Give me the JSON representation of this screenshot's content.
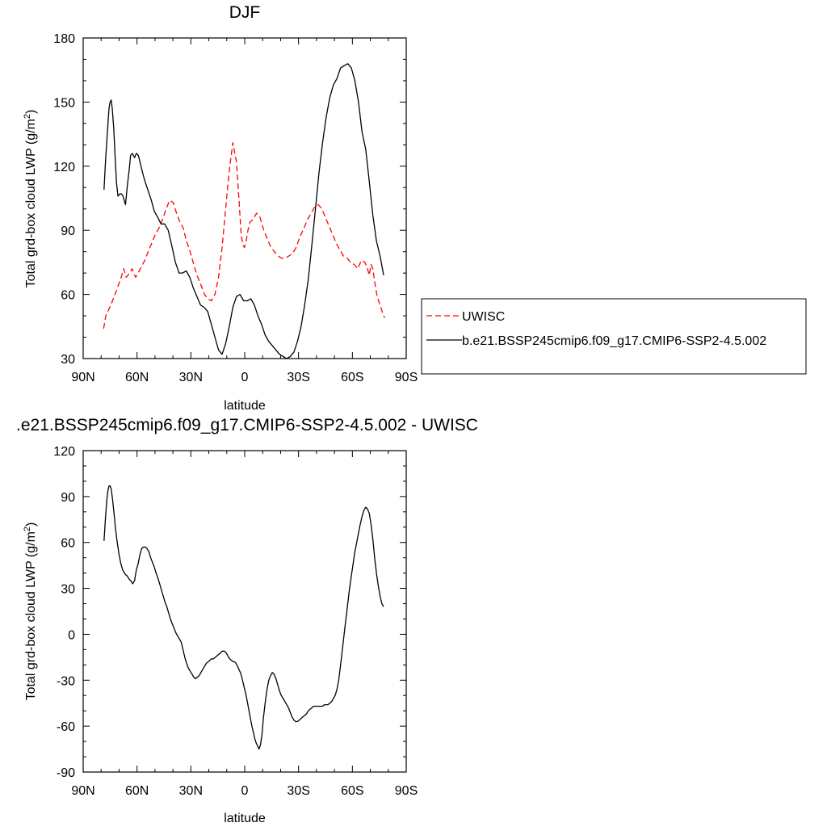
{
  "colors": {
    "model": "#000000",
    "obs": "#ff0000",
    "frame": "#000000"
  },
  "chart_data": [
    {
      "type": "line",
      "title": "DJF",
      "xlabel": "latitude",
      "ylabel_main": "Total grd-box cloud LWP (g/m",
      "ylabel_sup": "2",
      "ylabel_tail": ")",
      "xlim": [
        90,
        -90
      ],
      "ylim": [
        30,
        180
      ],
      "x_ticks": [
        90,
        60,
        30,
        0,
        -30,
        -60,
        -90
      ],
      "x_tick_labels": [
        "90N",
        "60N",
        "30N",
        "0",
        "30S",
        "60S",
        "90S"
      ],
      "y_ticks": [
        30,
        60,
        90,
        120,
        150,
        180
      ],
      "y_tick_labels": [
        "30",
        "60",
        "90",
        "120",
        "150",
        "180"
      ],
      "legend_position": "right",
      "series": [
        {
          "name": "UWISC",
          "style": "dashed",
          "color": "#ff0000",
          "x": [
            78.6,
            77.4,
            76.3,
            74.6,
            73.2,
            71.4,
            69.2,
            67.4,
            66.0,
            64.1,
            62.8,
            60.8,
            59.4,
            57.6,
            55.6,
            53.8,
            51.8,
            49.8,
            47.8,
            45.8,
            43.8,
            41.8,
            39.8,
            38.0,
            36.2,
            34.2,
            32.8,
            30.4,
            28.4,
            26.6,
            24.6,
            22.4,
            20.6,
            18.6,
            16.6,
            14.6,
            12.6,
            10.6,
            8.6,
            6.6,
            4.6,
            3.0,
            2.0,
            1.0,
            0.2,
            -0.8,
            -1.8,
            -3.0,
            -4.6,
            -6.6,
            -8.6,
            -10.6,
            -12.6,
            -14.6,
            -16.6,
            -18.6,
            -20.6,
            -22.6,
            -24.6,
            -26.6,
            -28.6,
            -30.8,
            -33.0,
            -35.0,
            -37.0,
            -39.0,
            -41.0,
            -43.0,
            -45.0,
            -47.0,
            -49.0,
            -51.0,
            -53.0,
            -55.0,
            -57.0,
            -59.0,
            -61.0,
            -63.0,
            -65.0,
            -67.0,
            -68.4,
            -69.4,
            -70.4,
            -71.4,
            -72.6,
            -73.8,
            -75.0,
            -76.6,
            -78.0
          ],
          "values": [
            44,
            50,
            52,
            55,
            58,
            62,
            67,
            72,
            68,
            70,
            72,
            68,
            70,
            73,
            76,
            80,
            84,
            88,
            91,
            95,
            100,
            104,
            103,
            98,
            94,
            91,
            86,
            80,
            74,
            69,
            65,
            60,
            58,
            57,
            60,
            68,
            82,
            100,
            118,
            131,
            122,
            102,
            88,
            83,
            82,
            85,
            90,
            94,
            95,
            98,
            96,
            90,
            86,
            82,
            80,
            78,
            77,
            77,
            78,
            79,
            82,
            87,
            91,
            95,
            98,
            101,
            102,
            100,
            96,
            92,
            88,
            84,
            81,
            78,
            77,
            75,
            74,
            72,
            76,
            75,
            72,
            69,
            74,
            72,
            65,
            59,
            56,
            52,
            49
          ]
        },
        {
          "name": "b.e21.BSSP245cmip6.f09_g17.CMIP6-SSP2-4.5.002",
          "style": "solid",
          "color": "#000000",
          "x": [
            78.4,
            77.6,
            76.8,
            76.2,
            75.6,
            75.0,
            74.4,
            73.8,
            73.0,
            72.2,
            71.4,
            70.6,
            69.6,
            68.6,
            67.8,
            66.4,
            65.4,
            64.4,
            63.6,
            62.6,
            61.4,
            60.4,
            59.2,
            57.8,
            56.6,
            55.2,
            53.6,
            52.0,
            50.4,
            48.4,
            46.6,
            44.6,
            42.6,
            40.4,
            38.6,
            36.6,
            34.6,
            32.6,
            30.6,
            28.6,
            26.6,
            24.6,
            22.6,
            20.6,
            18.6,
            16.6,
            14.6,
            12.6,
            10.6,
            8.6,
            6.6,
            4.6,
            2.6,
            0.6,
            -1.4,
            -3.4,
            -5.4,
            -7.4,
            -9.4,
            -11.4,
            -13.4,
            -15.4,
            -17.4,
            -19.4,
            -21.4,
            -23.4,
            -25.4,
            -27.4,
            -29.4,
            -31.4,
            -33.4,
            -35.4,
            -37.4,
            -39.4,
            -41.4,
            -43.4,
            -45.4,
            -47.4,
            -49.4,
            -51.4,
            -53.4,
            -55.4,
            -57.4,
            -59.4,
            -61.4,
            -63.4,
            -65.4,
            -67.4,
            -69.4,
            -71.4,
            -73.4,
            -75.4,
            -77.4
          ],
          "values": [
            109,
            122,
            132,
            140,
            147,
            150,
            151,
            147,
            138,
            124,
            112,
            106,
            107,
            107,
            106,
            102,
            111,
            118,
            125,
            126,
            124,
            126,
            125,
            120,
            116,
            112,
            108,
            104,
            99,
            96,
            93,
            93,
            90,
            82,
            75,
            70,
            70,
            71,
            68,
            63,
            59,
            55,
            54,
            52,
            46,
            40,
            34,
            32,
            37,
            45,
            54,
            59,
            60,
            57,
            57,
            58,
            55,
            50,
            46,
            41,
            38,
            36,
            34,
            32,
            31,
            30,
            31,
            33,
            38,
            45,
            55,
            67,
            83,
            100,
            117,
            131,
            143,
            152,
            158,
            161,
            166,
            167,
            168,
            166,
            160,
            150,
            136,
            128,
            113,
            97,
            85,
            78,
            69
          ]
        }
      ]
    },
    {
      "type": "line",
      "title": ".e21.BSSP245cmip6.f09_g17.CMIP6-SSP2-4.5.002 - UWISC",
      "xlabel": "latitude",
      "ylabel_main": "Total grd-box cloud LWP (g/m",
      "ylabel_sup": "2",
      "ylabel_tail": ")",
      "xlim": [
        90,
        -90
      ],
      "ylim": [
        -90,
        120
      ],
      "x_ticks": [
        90,
        60,
        30,
        0,
        -30,
        -60,
        -90
      ],
      "x_tick_labels": [
        "90N",
        "60N",
        "30N",
        "0",
        "30S",
        "60S",
        "90S"
      ],
      "y_ticks": [
        -90,
        -60,
        -30,
        0,
        30,
        60,
        90,
        120
      ],
      "y_tick_labels": [
        "-90",
        "-60",
        "-30",
        "0",
        "30",
        "60",
        "90",
        "120"
      ],
      "series": [
        {
          "name": "",
          "style": "solid",
          "color": "#000000",
          "x": [
            78.4,
            77.6,
            76.8,
            76.2,
            75.6,
            75.0,
            74.4,
            73.6,
            72.8,
            72.0,
            71.0,
            70.0,
            69.0,
            68.0,
            66.4,
            65.4,
            64.4,
            63.4,
            62.4,
            61.4,
            60.4,
            59.4,
            58.4,
            57.4,
            56.4,
            55.4,
            54.4,
            53.4,
            52.4,
            51.4,
            50.4,
            49.4,
            48.4,
            47.4,
            46.4,
            45.4,
            44.4,
            43.4,
            42.4,
            41.4,
            40.4,
            39.4,
            38.4,
            37.4,
            36.4,
            35.4,
            34.4,
            33.4,
            32.4,
            31.4,
            30.4,
            29.4,
            28.4,
            27.4,
            26.4,
            25.4,
            24.4,
            23.4,
            22.4,
            21.4,
            20.4,
            19.4,
            18.4,
            17.4,
            16.4,
            15.4,
            14.4,
            13.4,
            12.4,
            11.4,
            10.4,
            9.4,
            8.4,
            7.4,
            6.4,
            5.6,
            4.8,
            4.0,
            3.2,
            2.4,
            1.6,
            0.8,
            0.0,
            -0.8,
            -1.6,
            -2.4,
            -3.2,
            -4.0,
            -4.8,
            -5.6,
            -6.4,
            -7.2,
            -8.0,
            -8.8,
            -9.6,
            -10.4,
            -11.4,
            -12.4,
            -13.4,
            -14.4,
            -15.4,
            -16.4,
            -17.4,
            -18.4,
            -19.4,
            -20.4,
            -21.4,
            -22.4,
            -23.4,
            -24.4,
            -25.4,
            -26.4,
            -27.4,
            -28.4,
            -29.4,
            -30.4,
            -31.4,
            -32.4,
            -33.4,
            -34.4,
            -35.4,
            -36.4,
            -37.4,
            -38.4,
            -39.4,
            -40.4,
            -41.4,
            -42.4,
            -43.4,
            -44.4,
            -45.4,
            -46.4,
            -47.4,
            -48.4,
            -49.4,
            -50.4,
            -51.4,
            -52.4,
            -53.4,
            -54.4,
            -55.4,
            -56.4,
            -57.4,
            -58.4,
            -59.4,
            -60.4,
            -61.4,
            -62.4,
            -63.4,
            -64.4,
            -65.4,
            -66.4,
            -67.4,
            -68.4,
            -69.4,
            -70.4,
            -71.4,
            -72.4,
            -73.4,
            -74.4,
            -75.4,
            -76.4,
            -77.4
          ],
          "values": [
            61,
            76,
            88,
            94,
            97,
            97,
            95,
            88,
            79,
            69,
            60,
            52,
            46,
            42,
            39,
            38,
            36,
            35,
            33,
            35,
            42,
            46,
            52,
            56,
            57,
            57,
            56,
            54,
            50,
            47,
            44,
            40,
            37,
            33,
            29,
            25,
            21,
            18,
            14,
            10,
            7,
            4,
            1,
            -1,
            -3,
            -5,
            -10,
            -15,
            -19,
            -22,
            -24,
            -26,
            -28,
            -29,
            -28,
            -27,
            -25,
            -23,
            -21,
            -19,
            -18,
            -17,
            -16,
            -16,
            -15,
            -14,
            -13,
            -12,
            -11,
            -11,
            -12,
            -14,
            -16,
            -17,
            -18,
            -18,
            -19,
            -21,
            -23,
            -25,
            -28,
            -32,
            -36,
            -40,
            -45,
            -50,
            -55,
            -60,
            -64,
            -68,
            -71,
            -73,
            -75,
            -72,
            -66,
            -55,
            -45,
            -36,
            -30,
            -27,
            -25,
            -26,
            -29,
            -33,
            -37,
            -40,
            -42,
            -44,
            -46,
            -48,
            -51,
            -54,
            -56,
            -57,
            -57,
            -56,
            -55,
            -54,
            -53,
            -52,
            -50,
            -49,
            -48,
            -47,
            -47,
            -47,
            -47,
            -47,
            -47,
            -46,
            -46,
            -46,
            -45,
            -44,
            -42,
            -40,
            -36,
            -30,
            -20,
            -10,
            0,
            10,
            20,
            30,
            38,
            46,
            54,
            60,
            66,
            72,
            77,
            81,
            83,
            82,
            79,
            72,
            62,
            50,
            40,
            32,
            25,
            20,
            18
          ]
        }
      ]
    }
  ]
}
